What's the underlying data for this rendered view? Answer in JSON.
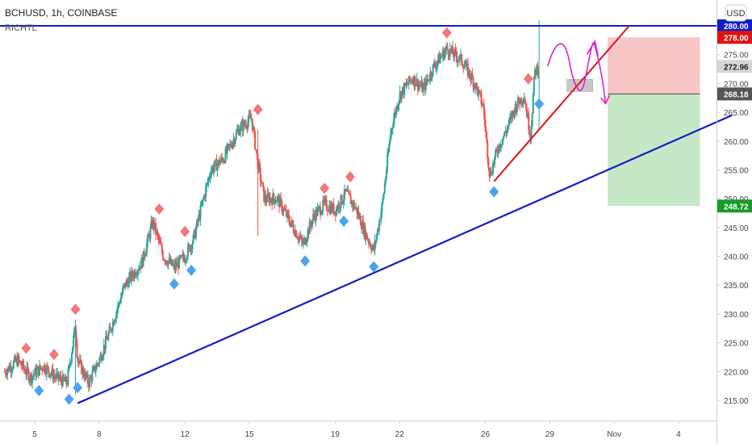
{
  "header": {
    "symbol_line": "BCHUSD, 1h, COINBASE",
    "indicator_label": "RICHTL",
    "currency_button": "USD"
  },
  "chart_data": {
    "type": "candlestick",
    "ylim": [
      210,
      283
    ],
    "yticks": [
      215,
      220,
      225,
      230,
      235,
      240,
      245,
      250,
      255,
      260,
      265,
      270,
      275
    ],
    "ytick_labels": [
      "215.00",
      "220.00",
      "225.00",
      "230.00",
      "235.00",
      "240.00",
      "245.00",
      "250.00",
      "255.00",
      "260.00",
      "265.00",
      "270.00",
      "275.00"
    ],
    "xticks": [
      {
        "day": 5,
        "label": "5"
      },
      {
        "day": 8,
        "label": "8"
      },
      {
        "day": 12,
        "label": "12"
      },
      {
        "day": 15,
        "label": "15"
      },
      {
        "day": 19,
        "label": "19"
      },
      {
        "day": 22,
        "label": "22"
      },
      {
        "day": 26,
        "label": "26"
      },
      {
        "day": 29,
        "label": "29"
      },
      {
        "day": 32,
        "label": "Nov"
      },
      {
        "day": 35,
        "label": "4"
      }
    ],
    "price_path": [
      [
        3.6,
        220
      ],
      [
        4.2,
        222
      ],
      [
        4.8,
        219
      ],
      [
        5.4,
        221
      ],
      [
        6.0,
        219
      ],
      [
        6.5,
        218
      ],
      [
        6.9,
        228
      ],
      [
        7.0,
        222
      ],
      [
        7.5,
        218
      ],
      [
        8.0,
        222
      ],
      [
        8.5,
        227
      ],
      [
        9.2,
        235
      ],
      [
        10.0,
        239
      ],
      [
        10.5,
        246
      ],
      [
        11.0,
        240
      ],
      [
        11.5,
        238
      ],
      [
        12.0,
        240
      ],
      [
        12.4,
        243
      ],
      [
        12.8,
        249
      ],
      [
        13.2,
        255
      ],
      [
        13.8,
        257
      ],
      [
        14.5,
        262
      ],
      [
        15.1,
        264
      ],
      [
        15.4,
        256
      ],
      [
        15.7,
        250
      ],
      [
        16.3,
        250
      ],
      [
        16.9,
        246
      ],
      [
        17.5,
        242
      ],
      [
        18.0,
        247
      ],
      [
        18.5,
        249
      ],
      [
        19.0,
        248
      ],
      [
        19.5,
        251
      ],
      [
        20.0,
        248
      ],
      [
        20.4,
        244
      ],
      [
        20.8,
        241
      ],
      [
        21.2,
        249
      ],
      [
        21.6,
        262
      ],
      [
        22.0,
        268
      ],
      [
        22.6,
        271
      ],
      [
        23.1,
        269
      ],
      [
        23.6,
        273
      ],
      [
        24.2,
        276
      ],
      [
        24.9,
        274
      ],
      [
        25.5,
        270
      ],
      [
        25.9,
        266
      ],
      [
        26.2,
        254
      ],
      [
        26.6,
        259
      ],
      [
        27.0,
        262
      ],
      [
        27.4,
        266
      ],
      [
        27.8,
        268
      ],
      [
        28.1,
        261
      ],
      [
        28.3,
        272
      ],
      [
        28.5,
        273
      ]
    ],
    "sell_markers": [
      4.6,
      5.9,
      6.9,
      10.8,
      12.0,
      15.4,
      18.5,
      19.7,
      24.2,
      28.0
    ],
    "buy_markers": [
      5.2,
      6.6,
      7.0,
      11.5,
      12.3,
      17.6,
      19.4,
      20.8,
      26.4,
      28.5
    ],
    "annotations": {
      "horizontal_line": 280,
      "lower_trendline": [
        [
          7.0,
          214.5
        ],
        [
          37.5,
          264.5
        ]
      ],
      "upper_trendline": [
        [
          26.4,
          253
        ],
        [
          32.7,
          280
        ]
      ],
      "resistance_box": {
        "x0": 29.8,
        "x1": 31.0,
        "y0": 268.6,
        "y1": 270.7
      },
      "risk_zone": {
        "x0": 31.7,
        "x1": 36.0,
        "y_top": 278,
        "y_mid": 268.18,
        "y_bottom": 248.72
      }
    },
    "price_labels": [
      {
        "name": "resistance",
        "value": "280.00",
        "y": 280.0,
        "bg": "#0f1dc7",
        "fg": "#ffffff"
      },
      {
        "name": "stop",
        "value": "278.00",
        "y": 278.0,
        "bg": "#e01212",
        "fg": "#ffffff"
      },
      {
        "name": "last",
        "value": "272.96",
        "y": 272.96,
        "bg": "#d6d6d6",
        "fg": "#222222"
      },
      {
        "name": "entry",
        "value": "268.18",
        "y": 268.18,
        "bg": "#555555",
        "fg": "#ffffff"
      },
      {
        "name": "target",
        "value": "248.72",
        "y": 248.72,
        "bg": "#1a9a2c",
        "fg": "#ffffff"
      }
    ],
    "colors": {
      "up": "#26a69a",
      "down": "#ef5350",
      "trend_blue": "#0f1dc7",
      "trend_red": "#e01212",
      "arrow_magenta": "#e020c8",
      "stop_zone": "#f8c6c6",
      "target_zone": "#c6e8c6",
      "sell_marker": "#f07878",
      "buy_marker": "#4aa3f0"
    }
  }
}
